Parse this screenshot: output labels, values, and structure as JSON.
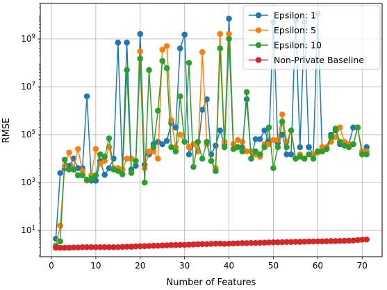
{
  "chart_data": {
    "type": "line",
    "title": "",
    "xlabel": "Number of Features",
    "ylabel": "RMSE",
    "xlim": [
      -2.5,
      74.5
    ],
    "ylim": [
      0.8,
      30000000000
    ],
    "yscale": "log",
    "xticks": [
      0,
      10,
      20,
      30,
      40,
      50,
      60,
      70
    ],
    "yticks": [
      {
        "value": 10,
        "label": "10",
        "exp": "1"
      },
      {
        "value": 1000,
        "label": "10",
        "exp": "3"
      },
      {
        "value": 100000,
        "label": "10",
        "exp": "5"
      },
      {
        "value": 10000000,
        "label": "10",
        "exp": "7"
      },
      {
        "value": 1000000000,
        "label": "10",
        "exp": "9"
      }
    ],
    "grid": true,
    "legend_position": "top-right",
    "series": [
      {
        "name": "Epsilon: 1",
        "color": "#1f77b4",
        "x": [
          1,
          2,
          3,
          4,
          5,
          6,
          7,
          8,
          9,
          10,
          11,
          12,
          13,
          14,
          15,
          16,
          17,
          18,
          19,
          20,
          21,
          22,
          23,
          24,
          25,
          26,
          27,
          28,
          29,
          30,
          31,
          32,
          33,
          34,
          35,
          36,
          37,
          38,
          39,
          40,
          41,
          42,
          43,
          44,
          45,
          46,
          47,
          48,
          49,
          50,
          51,
          52,
          53,
          54,
          55,
          56,
          57,
          58,
          59,
          60,
          61,
          62,
          63,
          64,
          65,
          66,
          67,
          68,
          69,
          70,
          71
        ],
        "y": [
          4.5,
          2500,
          4000,
          5000,
          10000,
          4000,
          4000,
          4000000,
          1200,
          1200,
          8000,
          2100,
          4000,
          10000,
          700000000,
          3500,
          700000000,
          3500,
          5000,
          1600000000,
          5500,
          15000,
          40000,
          50000,
          40000,
          55000,
          300000,
          200000,
          400000000,
          1500000000,
          15000,
          40000,
          20000,
          1100000,
          3000000,
          15000,
          35000,
          150000,
          40000,
          7000000000,
          40000,
          30000,
          30000,
          3000000,
          10000,
          65000,
          65000,
          150000,
          50000,
          5000000000,
          45000,
          100000,
          15000,
          15000,
          6000000000,
          30000,
          5000000000,
          30000,
          15000,
          11000000000,
          20000,
          30000,
          100000,
          150000,
          40000,
          40000,
          40000,
          200000,
          200000,
          15000,
          30000
        ]
      },
      {
        "name": "Epsilon: 5",
        "color": "#ff7f0e",
        "x": [
          1,
          2,
          3,
          4,
          5,
          6,
          7,
          8,
          9,
          10,
          11,
          12,
          13,
          14,
          15,
          16,
          17,
          18,
          19,
          20,
          21,
          22,
          23,
          24,
          25,
          26,
          27,
          28,
          29,
          30,
          31,
          32,
          33,
          34,
          35,
          36,
          37,
          38,
          39,
          40,
          41,
          42,
          43,
          44,
          45,
          46,
          47,
          48,
          49,
          50,
          51,
          52,
          53,
          54,
          55,
          56,
          57,
          58,
          59,
          60,
          61,
          62,
          63,
          64,
          65,
          66,
          67,
          68,
          69,
          70,
          71
        ],
        "y": [
          2.2,
          16,
          5000,
          18000,
          4000,
          25000,
          3000,
          1200,
          2000,
          25000,
          6000,
          8000,
          30000,
          4000,
          4000,
          3500,
          10000,
          10000,
          8000,
          300000000,
          4000,
          20000,
          20000,
          10000,
          350000000,
          500000000,
          400000,
          30000,
          100000,
          50000,
          30000,
          40000,
          20000,
          280000000,
          40000,
          8000,
          4000,
          1600000000,
          50000,
          1600000000,
          40000,
          60000,
          50000,
          20000,
          20000,
          15000,
          12000,
          40000,
          40000,
          60000,
          60000,
          700000,
          50000,
          150000,
          10000,
          15000,
          10000,
          15000,
          15000,
          18000,
          30000,
          30000,
          50000,
          80000,
          200000,
          50000,
          40000,
          40000,
          200000,
          20000,
          20000
        ]
      },
      {
        "name": "Epsilon: 10",
        "color": "#2ca02c",
        "x": [
          1,
          2,
          3,
          4,
          5,
          6,
          7,
          8,
          9,
          10,
          11,
          12,
          13,
          14,
          15,
          16,
          17,
          18,
          19,
          20,
          21,
          22,
          23,
          24,
          25,
          26,
          27,
          28,
          29,
          30,
          31,
          32,
          33,
          34,
          35,
          36,
          37,
          38,
          39,
          40,
          41,
          42,
          43,
          44,
          45,
          46,
          47,
          48,
          49,
          50,
          51,
          52,
          53,
          54,
          55,
          56,
          57,
          58,
          59,
          60,
          61,
          62,
          63,
          64,
          65,
          66,
          67,
          68,
          69,
          70,
          71
        ],
        "y": [
          2.3,
          3.5,
          9000,
          3500,
          3500,
          2000,
          2000,
          1300,
          1500,
          2000,
          15000,
          12000,
          70000,
          3500,
          3000,
          2200,
          50000000,
          2500,
          8000,
          150000000,
          1000,
          50000000,
          30000,
          1000000,
          120000000,
          60000000,
          30000,
          20000,
          4000000,
          50000,
          100000000,
          4500,
          50000,
          10000,
          50000,
          8000,
          3000,
          400000000,
          30000,
          1000000000,
          25000,
          30000,
          20000,
          6000000,
          10000,
          20000,
          15000,
          30000,
          200000,
          4000,
          30000,
          350000,
          30000,
          150000,
          10000,
          12000,
          10000,
          15000,
          10000,
          20000,
          20000,
          25000,
          80000,
          180000,
          50000,
          35000,
          30000,
          40000,
          200000,
          15000,
          15000
        ]
      },
      {
        "name": "Non-Private Baseline",
        "color": "#d62728",
        "x": [
          1,
          2,
          3,
          4,
          5,
          6,
          7,
          8,
          9,
          10,
          11,
          12,
          13,
          14,
          15,
          16,
          17,
          18,
          19,
          20,
          21,
          22,
          23,
          24,
          25,
          26,
          27,
          28,
          29,
          30,
          31,
          32,
          33,
          34,
          35,
          36,
          37,
          38,
          39,
          40,
          41,
          42,
          43,
          44,
          45,
          46,
          47,
          48,
          49,
          50,
          51,
          52,
          53,
          54,
          55,
          56,
          57,
          58,
          59,
          60,
          61,
          62,
          63,
          64,
          65,
          66,
          67,
          68,
          69,
          70,
          71
        ],
        "y": [
          1.9,
          1.9,
          1.9,
          1.9,
          1.95,
          1.95,
          2.0,
          2.0,
          2.0,
          2.0,
          2.0,
          2.0,
          2.0,
          2.0,
          2.0,
          2.05,
          2.1,
          2.1,
          2.15,
          2.2,
          2.2,
          2.25,
          2.3,
          2.3,
          2.35,
          2.4,
          2.45,
          2.45,
          2.5,
          2.5,
          2.55,
          2.6,
          2.65,
          2.7,
          2.7,
          2.75,
          2.8,
          2.8,
          2.75,
          2.8,
          2.85,
          2.9,
          2.95,
          2.95,
          3.0,
          3.0,
          3.05,
          3.1,
          3.15,
          3.2,
          3.2,
          3.25,
          3.3,
          3.3,
          3.35,
          3.35,
          3.4,
          3.45,
          3.45,
          3.5,
          3.5,
          3.55,
          3.6,
          3.6,
          3.65,
          3.7,
          3.75,
          3.8,
          4.0,
          4.1,
          4.2
        ]
      }
    ]
  }
}
